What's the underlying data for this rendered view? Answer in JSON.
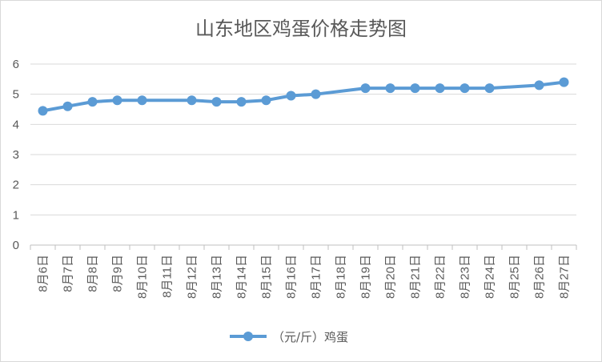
{
  "chart_data": {
    "type": "line",
    "title": "山东地区鸡蛋价格走势图",
    "categories": [
      "8月6日",
      "8月7日",
      "8月8日",
      "8月9日",
      "8月10日",
      "8月11日",
      "8月12日",
      "8月13日",
      "8月14日",
      "8月15日",
      "8月16日",
      "8月17日",
      "8月18日",
      "8月19日",
      "8月20日",
      "8月21日",
      "8月22日",
      "8月23日",
      "8月24日",
      "8月25日",
      "8月26日",
      "8月27日"
    ],
    "series": [
      {
        "name": "（元/斤）鸡蛋",
        "color": "#5b9bd5",
        "values": [
          4.45,
          4.6,
          4.75,
          4.8,
          4.8,
          null,
          4.8,
          4.75,
          4.75,
          4.8,
          4.95,
          5.0,
          null,
          5.2,
          5.2,
          5.2,
          5.2,
          5.2,
          5.2,
          null,
          5.3,
          5.4
        ]
      }
    ],
    "ylim": [
      0,
      6
    ],
    "yticks": [
      0,
      1,
      2,
      3,
      4,
      5,
      6
    ],
    "grid": true,
    "legend_position": "bottom",
    "gap_handling": "connect"
  }
}
